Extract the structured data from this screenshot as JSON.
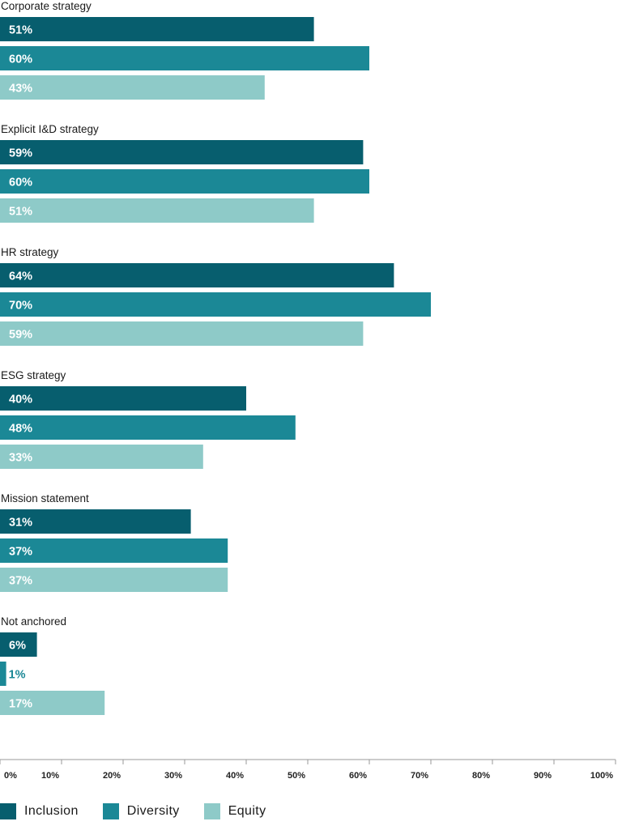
{
  "chart_data": {
    "type": "bar",
    "orientation": "horizontal",
    "categories": [
      "Corporate strategy",
      "Explicit I&D strategy",
      "HR strategy",
      "ESG strategy",
      "Mission statement",
      "Not anchored"
    ],
    "series": [
      {
        "name": "Inclusion",
        "color": "#075e6e",
        "values": [
          51,
          59,
          64,
          40,
          31,
          6
        ]
      },
      {
        "name": "Diversity",
        "color": "#1b8896",
        "values": [
          60,
          60,
          70,
          48,
          37,
          1
        ]
      },
      {
        "name": "Equity",
        "color": "#8ecac8",
        "values": [
          43,
          51,
          59,
          33,
          37,
          17
        ]
      }
    ],
    "xlim": [
      0,
      100
    ],
    "x_ticks": [
      "0%",
      "10%",
      "20%",
      "30%",
      "40%",
      "50%",
      "60%",
      "70%",
      "80%",
      "90%",
      "100%"
    ],
    "value_suffix": "%",
    "legend_position": "bottom-left",
    "grid": false
  }
}
